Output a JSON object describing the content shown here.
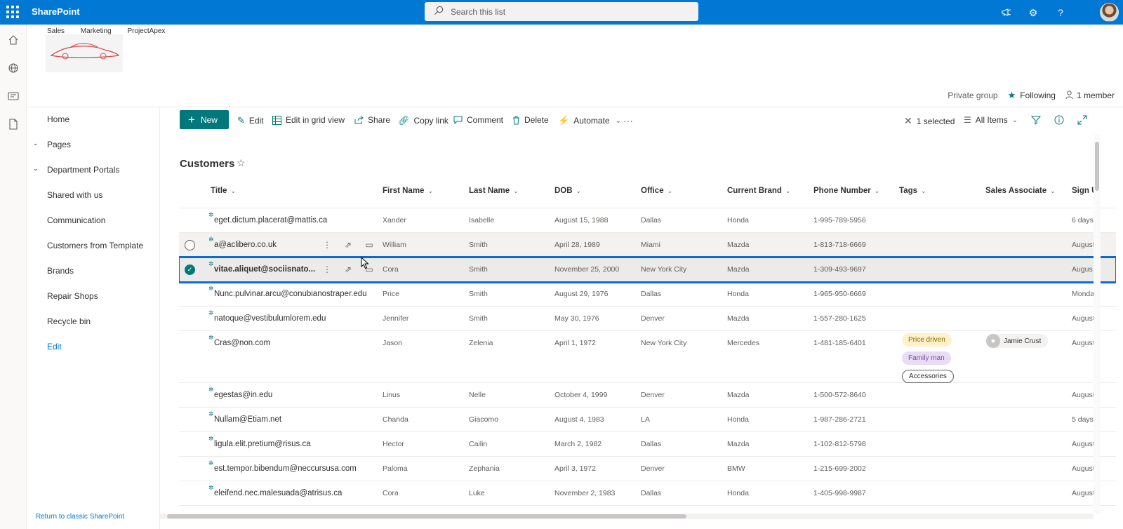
{
  "suite": {
    "app_name": "SharePoint",
    "search_placeholder": "Search this list"
  },
  "site": {
    "nav": [
      "Sales",
      "Marketing",
      "ProjectApex"
    ],
    "group_type": "Private group",
    "following_label": "Following",
    "members_label": "1 member"
  },
  "leftnav": {
    "items": [
      "Home",
      "Pages",
      "Department Portals",
      "Shared with us",
      "Communication",
      "Customers from Template",
      "Brands",
      "Repair Shops",
      "Recycle bin"
    ],
    "edit_label": "Edit",
    "return_label": "Return to classic SharePoint"
  },
  "commands": {
    "new": "New",
    "edit": "Edit",
    "edit_grid": "Edit in grid view",
    "share": "Share",
    "copy_link": "Copy link",
    "comment": "Comment",
    "delete": "Delete",
    "automate": "Automate",
    "selected": "1 selected",
    "view": "All Items"
  },
  "list": {
    "title": "Customers",
    "columns": [
      "Title",
      "First Name",
      "Last Name",
      "DOB",
      "Office",
      "Current Brand",
      "Phone Number",
      "Tags",
      "Sales Associate",
      "Sign U"
    ],
    "rows": [
      {
        "title": "eget.dictum.placerat@mattis.ca",
        "first": "Xander",
        "last": "Isabelle",
        "dob": "August 15, 1988",
        "office": "Dallas",
        "brand": "Honda",
        "phone": "1-995-789-5956",
        "sign": "6 days"
      },
      {
        "title": "a@aclibero.co.uk",
        "first": "William",
        "last": "Smith",
        "dob": "April 28, 1989",
        "office": "Miami",
        "brand": "Mazda",
        "phone": "1-813-718-6669",
        "sign": "August"
      },
      {
        "title": "vitae.aliquet@sociisnato...",
        "first": "Cora",
        "last": "Smith",
        "dob": "November 25, 2000",
        "office": "New York City",
        "brand": "Mazda",
        "phone": "1-309-493-9697",
        "sign": "Augus"
      },
      {
        "title": "Nunc.pulvinar.arcu@conubianostraper.edu",
        "first": "Price",
        "last": "Smith",
        "dob": "August 29, 1976",
        "office": "Dallas",
        "brand": "Honda",
        "phone": "1-965-950-6669",
        "sign": "Monda"
      },
      {
        "title": "natoque@vestibulumlorem.edu",
        "first": "Jennifer",
        "last": "Smith",
        "dob": "May 30, 1976",
        "office": "Denver",
        "brand": "Mazda",
        "phone": "1-557-280-1625",
        "sign": "August"
      },
      {
        "title": "Cras@non.com",
        "first": "Jason",
        "last": "Zelenia",
        "dob": "April 1, 1972",
        "office": "New York City",
        "brand": "Mercedes",
        "phone": "1-481-185-6401",
        "sign": "August",
        "tags": [
          "Price driven",
          "Family man",
          "Accessories"
        ],
        "associate": "Jamie Crust"
      },
      {
        "title": "egestas@in.edu",
        "first": "Linus",
        "last": "Nelle",
        "dob": "October 4, 1999",
        "office": "Denver",
        "brand": "Mazda",
        "phone": "1-500-572-8640",
        "sign": "August"
      },
      {
        "title": "Nullam@Etiam.net",
        "first": "Chanda",
        "last": "Giacomo",
        "dob": "August 4, 1983",
        "office": "LA",
        "brand": "Honda",
        "phone": "1-987-286-2721",
        "sign": "5 days"
      },
      {
        "title": "ligula.elit.pretium@risus.ca",
        "first": "Hector",
        "last": "Cailin",
        "dob": "March 2, 1982",
        "office": "Dallas",
        "brand": "Mazda",
        "phone": "1-102-812-5798",
        "sign": "August"
      },
      {
        "title": "est.tempor.bibendum@neccursusa.com",
        "first": "Paloma",
        "last": "Zephania",
        "dob": "April 3, 1972",
        "office": "Denver",
        "brand": "BMW",
        "phone": "1-215-699-2002",
        "sign": "August"
      },
      {
        "title": "eleifend.nec.malesuada@atrisus.ca",
        "first": "Cora",
        "last": "Luke",
        "dob": "November 2, 1983",
        "office": "Dallas",
        "brand": "Honda",
        "phone": "1-405-998-9987",
        "sign": "August"
      }
    ]
  },
  "colors": {
    "accent": "#0078d4",
    "teal": "#03787c",
    "selection_outline": "#0b6ad6"
  }
}
